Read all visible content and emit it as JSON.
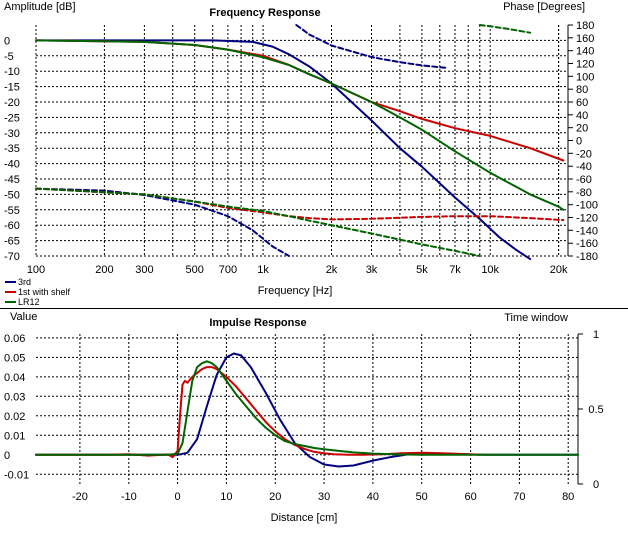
{
  "chart_data": [
    {
      "type": "line",
      "title": "Frequency Response",
      "xlabel": "Frequency [Hz]",
      "ylabel": "Amplitude [dB]",
      "y2label": "Phase [Degrees]",
      "xscale": "log",
      "xlim": [
        100,
        22000
      ],
      "ylim": [
        -70,
        5
      ],
      "y2lim": [
        -180,
        180
      ],
      "grid": true,
      "legend": "bottom-left",
      "x_ticks": [
        100,
        200,
        300,
        500,
        700,
        1000,
        2000,
        3000,
        5000,
        7000,
        10000,
        20000
      ],
      "x_tick_labels": [
        "100",
        "200",
        "300",
        "500",
        "700",
        "1k",
        "2k",
        "3k",
        "5k",
        "7k",
        "10k",
        "20k"
      ],
      "y_ticks": [
        0,
        -5,
        -10,
        -15,
        -20,
        -25,
        -30,
        -35,
        -40,
        -45,
        -50,
        -55,
        -60,
        -65,
        -70
      ],
      "y_tick_labels": [
        "0",
        "-5",
        "-10",
        "-15",
        "-20",
        "-25",
        "-30",
        "-35",
        "-40",
        "-45",
        "-50",
        "-55",
        "-60",
        "-65",
        "-70"
      ],
      "y2_ticks": [
        180,
        160,
        140,
        120,
        100,
        80,
        60,
        40,
        20,
        0,
        -20,
        -40,
        -60,
        -80,
        -100,
        -120,
        -140,
        -160,
        -180
      ],
      "y2_tick_labels": [
        "180",
        "160",
        "140",
        "120",
        "100",
        "80",
        "60",
        "40",
        "20",
        "0",
        "-20",
        "-40",
        "-60",
        "-80",
        "-100",
        "-120",
        "-140",
        "-160",
        "-180"
      ],
      "series": [
        {
          "name": "3rd",
          "color": "#000080",
          "kind": "amplitude",
          "x": [
            100,
            300,
            600,
            900,
            1100,
            1300,
            1600,
            2000,
            3000,
            4000,
            5000,
            7000,
            9000,
            11000,
            13000,
            15000
          ],
          "y": [
            0,
            0,
            0,
            -0.5,
            -2,
            -4.5,
            -8.5,
            -14,
            -26,
            -35,
            -41,
            -51,
            -58,
            -64,
            -68,
            -71
          ]
        },
        {
          "name": "1st with shelf",
          "color": "#cc0000",
          "kind": "amplitude",
          "x": [
            100,
            300,
            500,
            700,
            1000,
            1300,
            1600,
            2000,
            3000,
            4000,
            5000,
            7000,
            10000,
            15000,
            21000
          ],
          "y": [
            0,
            -0.5,
            -1.5,
            -3,
            -5,
            -8,
            -11,
            -14,
            -20,
            -23,
            -25.5,
            -28.5,
            -31,
            -35,
            -39
          ]
        },
        {
          "name": "LR12",
          "color": "#006400",
          "kind": "amplitude",
          "x": [
            100,
            300,
            500,
            700,
            1000,
            1300,
            1600,
            2000,
            3000,
            4000,
            5000,
            7000,
            10000,
            15000,
            20000,
            21000
          ],
          "y": [
            0,
            -0.5,
            -1.5,
            -3,
            -5.5,
            -8,
            -11,
            -14,
            -20,
            -25,
            -29,
            -36,
            -43,
            -50,
            -54,
            -55
          ]
        },
        {
          "name": "3rd phase",
          "color": "#000080",
          "kind": "phase",
          "x": [
            100,
            200,
            300,
            500,
            700,
            900,
            1100,
            1300
          ],
          "y": [
            -75,
            -78,
            -85,
            -100,
            -118,
            -140,
            -165,
            -180
          ]
        },
        {
          "name": "3rd phase (wrapped)",
          "color": "#000080",
          "kind": "phase",
          "x": [
            1400,
            1600,
            2000,
            3000,
            4000,
            5000,
            6500
          ],
          "y": [
            180,
            165,
            148,
            130,
            122,
            117,
            113
          ]
        },
        {
          "name": "1st with shelf phase",
          "color": "#cc0000",
          "kind": "phase",
          "x": [
            100,
            300,
            500,
            700,
            1000,
            1300,
            1600,
            2000,
            3000,
            5000,
            7000,
            10000,
            15000,
            21000
          ],
          "y": [
            -75,
            -84,
            -95,
            -105,
            -112,
            -118,
            -121,
            -123,
            -122,
            -119,
            -118,
            -118,
            -121,
            -124
          ]
        },
        {
          "name": "LR12 phase",
          "color": "#006400",
          "kind": "phase",
          "x": [
            100,
            300,
            500,
            700,
            1000,
            1300,
            1600,
            2000,
            3000,
            5000,
            7000,
            9000
          ],
          "y": [
            -75,
            -84,
            -95,
            -103,
            -110,
            -118,
            -125,
            -132,
            -145,
            -162,
            -172,
            -180
          ]
        },
        {
          "name": "LR12 phase (wrapped)",
          "color": "#006400",
          "kind": "phase",
          "x": [
            9000,
            10000,
            12000,
            15000
          ],
          "y": [
            180,
            178,
            174,
            168
          ]
        }
      ]
    },
    {
      "type": "line",
      "title": "Impulse Response",
      "xlabel": "Distance [cm]",
      "ylabel": "Value",
      "y2label": "Time window",
      "xlim": [
        -29,
        82
      ],
      "ylim": [
        -0.015,
        0.062
      ],
      "y2lim": [
        0,
        1
      ],
      "grid": true,
      "x_ticks": [
        -20,
        -10,
        0,
        10,
        20,
        30,
        40,
        50,
        60,
        70,
        80
      ],
      "x_tick_labels": [
        "-20",
        "-10",
        "0",
        "10",
        "20",
        "30",
        "40",
        "50",
        "60",
        "70",
        "80"
      ],
      "y_ticks": [
        0.06,
        0.05,
        0.04,
        0.03,
        0.02,
        0.01,
        0,
        -0.01
      ],
      "y_tick_labels": [
        "0.06",
        "0.05",
        "0.04",
        "0.03",
        "0.02",
        "0.01",
        "0",
        "-0.01"
      ],
      "y2_ticks": [
        1,
        0.5,
        0
      ],
      "y2_tick_labels": [
        "1",
        "0.5",
        "0"
      ],
      "series": [
        {
          "name": "3rd",
          "color": "#000080",
          "x": [
            -29,
            -8,
            0,
            2,
            4,
            6,
            8,
            10,
            11.5,
            13,
            15,
            18,
            21,
            24,
            27,
            30,
            33,
            36,
            40,
            44,
            48,
            52,
            56,
            60,
            63,
            82
          ],
          "y": [
            0,
            0,
            0,
            0.001,
            0.008,
            0.025,
            0.041,
            0.05,
            0.052,
            0.051,
            0.045,
            0.032,
            0.018,
            0.006,
            -0.001,
            -0.005,
            -0.006,
            -0.0055,
            -0.003,
            -0.001,
            0.0005,
            0.0008,
            0.0005,
            0.0002,
            0,
            0
          ]
        },
        {
          "name": "1st with shelf",
          "color": "#cc0000",
          "x": [
            -29,
            -14,
            -10,
            -6,
            -2,
            -1,
            0,
            0.5,
            1,
            1.5,
            2,
            3,
            4,
            5,
            6,
            7,
            8,
            10,
            12,
            14,
            16,
            18,
            20,
            22,
            24,
            26,
            28,
            30,
            32,
            35,
            38,
            42,
            46,
            50,
            54,
            58,
            62
          ],
          "y": [
            0,
            0,
            0.0003,
            -0.0004,
            0.0002,
            -0.0012,
            0.002,
            0.02,
            0.036,
            0.038,
            0.037,
            0.04,
            0.042,
            0.044,
            0.045,
            0.045,
            0.044,
            0.04,
            0.035,
            0.029,
            0.023,
            0.017,
            0.012,
            0.008,
            0.005,
            0.003,
            0.0015,
            0.0008,
            0.0003,
            0,
            0,
            0.0003,
            0.0008,
            0.001,
            0.0008,
            0.0004,
            0
          ]
        },
        {
          "name": "LR12",
          "color": "#006400",
          "x": [
            -29,
            -2,
            0,
            1,
            2,
            3,
            4,
            5,
            6,
            7,
            8,
            10,
            12,
            14,
            16,
            18,
            20,
            22,
            24,
            26,
            28,
            30,
            33,
            36,
            40,
            45,
            50,
            55,
            82
          ],
          "y": [
            0,
            0,
            0.0005,
            0.006,
            0.022,
            0.038,
            0.045,
            0.047,
            0.048,
            0.047,
            0.045,
            0.038,
            0.031,
            0.025,
            0.019,
            0.014,
            0.01,
            0.007,
            0.0055,
            0.0045,
            0.0035,
            0.0028,
            0.002,
            0.0012,
            0.0006,
            0.0002,
            0,
            0,
            0
          ]
        }
      ]
    }
  ]
}
